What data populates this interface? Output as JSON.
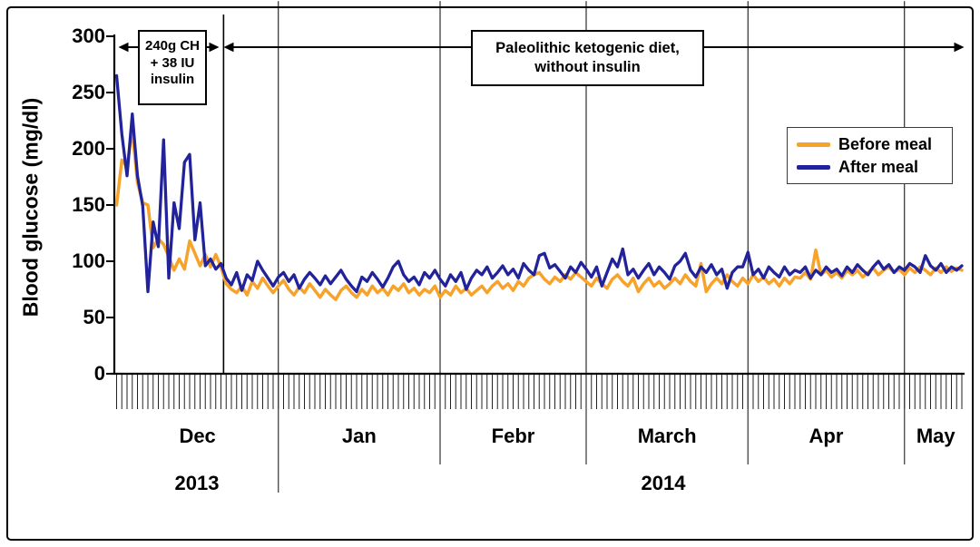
{
  "figure": {
    "background": "#ffffff",
    "border_color": "#000000"
  },
  "y_axis": {
    "title": "Blood glucose (mg/dl)",
    "tick_labels": [
      "0",
      "50",
      "100",
      "150",
      "200",
      "250",
      "300"
    ]
  },
  "x_axis": {
    "month_labels": [
      "Dec",
      "Jan",
      "Febr",
      "March",
      "Apr",
      "May"
    ],
    "year_labels": [
      "2013",
      "2014"
    ]
  },
  "annotations": {
    "insulin_period": {
      "lines": [
        "240g CH",
        "+ 38 IU",
        "insulin"
      ]
    },
    "paleo_period": {
      "lines": [
        "Paleolithic ketogenic diet,",
        "without insulin"
      ]
    }
  },
  "legend": {
    "items": [
      {
        "label": "Before meal",
        "color": "#F7A32B"
      },
      {
        "label": "After meal",
        "color": "#22229A"
      }
    ]
  },
  "chart_data": {
    "type": "line",
    "title": "",
    "xlabel": "",
    "ylabel": "Blood glucose (mg/dl)",
    "ylim": [
      0,
      300
    ],
    "y_ticks": [
      0,
      50,
      100,
      150,
      200,
      250,
      300
    ],
    "grid": false,
    "legend_position": "upper right",
    "x_unit": "days",
    "months": [
      {
        "label": "Dec",
        "year": "2013",
        "days": 31
      },
      {
        "label": "Jan",
        "year": "2014",
        "days": 31
      },
      {
        "label": "Febr",
        "year": "2014",
        "days": 28
      },
      {
        "label": "March",
        "year": "2014",
        "days": 31
      },
      {
        "label": "Apr",
        "year": "2014",
        "days": 30
      },
      {
        "label": "May",
        "year": "2014",
        "days": 12
      }
    ],
    "diet_change_day": 20.5,
    "period_annotations": [
      {
        "text": "240g CH + 38 IU insulin",
        "span_days": [
          0,
          20.5
        ]
      },
      {
        "text": "Paleolithic ketogenic diet, without insulin",
        "span_days": [
          20.5,
          163
        ]
      }
    ],
    "series": [
      {
        "name": "Before meal",
        "color": "#F7A32B",
        "values": [
          150,
          190,
          184,
          217,
          170,
          152,
          150,
          112,
          120,
          115,
          104,
          92,
          102,
          93,
          118,
          107,
          96,
          106,
          95,
          106,
          95,
          80,
          75,
          72,
          78,
          70,
          82,
          76,
          85,
          78,
          72,
          78,
          83,
          75,
          70,
          77,
          72,
          80,
          74,
          68,
          75,
          70,
          66,
          74,
          78,
          72,
          68,
          75,
          70,
          78,
          72,
          76,
          70,
          78,
          74,
          80,
          72,
          76,
          70,
          75,
          72,
          78,
          68,
          74,
          70,
          78,
          72,
          76,
          70,
          74,
          78,
          72,
          78,
          82,
          76,
          80,
          74,
          82,
          78,
          85,
          88,
          90,
          84,
          80,
          86,
          82,
          88,
          84,
          90,
          86,
          82,
          78,
          85,
          80,
          76,
          84,
          88,
          82,
          78,
          85,
          73,
          80,
          85,
          78,
          82,
          76,
          80,
          85,
          80,
          88,
          82,
          78,
          98,
          73,
          80,
          85,
          80,
          88,
          82,
          78,
          85,
          80,
          88,
          82,
          86,
          80,
          84,
          78,
          85,
          80,
          86,
          85,
          90,
          84,
          110,
          88,
          92,
          86,
          90,
          85,
          92,
          88,
          92,
          86,
          90,
          94,
          88,
          92,
          95,
          90,
          93,
          88,
          94,
          90,
          95,
          92,
          88,
          94,
          90,
          95,
          91,
          94,
          92
        ]
      },
      {
        "name": "After meal",
        "color": "#22229A",
        "values": [
          265,
          213,
          176,
          231,
          176,
          149,
          73,
          135,
          113,
          208,
          85,
          152,
          129,
          188,
          195,
          119,
          152,
          96,
          102,
          93,
          98,
          85,
          79,
          90,
          74,
          88,
          83,
          100,
          92,
          85,
          78,
          86,
          90,
          82,
          88,
          76,
          84,
          90,
          85,
          79,
          87,
          80,
          86,
          92,
          84,
          78,
          73,
          86,
          82,
          90,
          84,
          77,
          85,
          95,
          100,
          88,
          82,
          86,
          79,
          90,
          85,
          92,
          84,
          78,
          88,
          82,
          90,
          75,
          85,
          92,
          88,
          95,
          85,
          90,
          96,
          88,
          93,
          85,
          98,
          92,
          88,
          105,
          107,
          94,
          97,
          91,
          85,
          95,
          90,
          99,
          93,
          86,
          95,
          78,
          90,
          102,
          95,
          111,
          88,
          93,
          85,
          92,
          98,
          88,
          95,
          90,
          84,
          96,
          100,
          107,
          92,
          86,
          95,
          90,
          97,
          88,
          93,
          76,
          90,
          95,
          95,
          108,
          88,
          93,
          85,
          95,
          90,
          86,
          95,
          88,
          92,
          90,
          95,
          85,
          92,
          88,
          95,
          90,
          93,
          87,
          95,
          90,
          97,
          92,
          88,
          95,
          100,
          93,
          97,
          90,
          95,
          92,
          98,
          95,
          90,
          105,
          96,
          92,
          98,
          90,
          95,
          92,
          96
        ]
      }
    ]
  }
}
